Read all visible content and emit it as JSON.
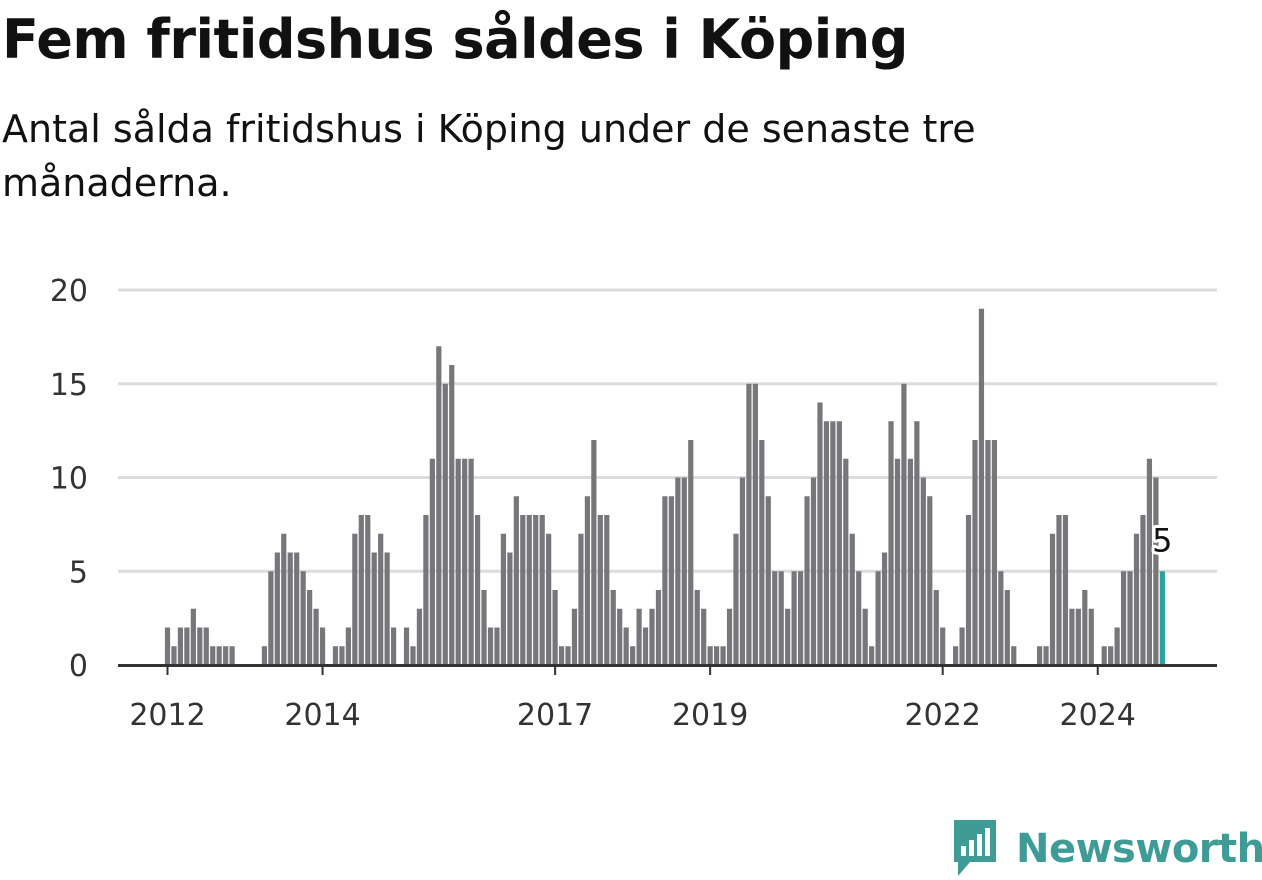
{
  "title": "Fem fritidshus såldes i Köping",
  "subtitle": "Antal sålda fritidshus i Köping under de senaste tre månaderna.",
  "brand": {
    "name": "Newsworthy",
    "icon": "newsworthy-logo-icon",
    "color": "#3f9b96"
  },
  "chart_data": {
    "type": "bar",
    "title": "Fem fritidshus såldes i Köping",
    "subtitle": "Antal sålda fritidshus i Köping under de senaste tre månaderna.",
    "xlabel": "",
    "ylabel": "",
    "ylim": [
      0,
      20
    ],
    "yticks": [
      0,
      5,
      10,
      15,
      20
    ],
    "xticks": [
      "2012",
      "2014",
      "2017",
      "2019",
      "2022",
      "2024"
    ],
    "grid": "horizontal",
    "legend": "none",
    "bar_color": "#77767b",
    "highlight_color": "#2aa39a",
    "last_label": "5",
    "start": "2012-01",
    "interval": "month",
    "values": [
      2,
      1,
      2,
      2,
      3,
      2,
      2,
      1,
      1,
      1,
      1,
      0,
      0,
      0,
      0,
      1,
      5,
      6,
      7,
      6,
      6,
      5,
      4,
      3,
      2,
      0,
      1,
      1,
      2,
      7,
      8,
      8,
      6,
      7,
      6,
      2,
      0,
      2,
      1,
      3,
      8,
      11,
      17,
      15,
      16,
      11,
      11,
      11,
      8,
      4,
      2,
      2,
      7,
      6,
      9,
      8,
      8,
      8,
      8,
      7,
      4,
      1,
      1,
      3,
      7,
      9,
      12,
      8,
      8,
      4,
      3,
      2,
      1,
      3,
      2,
      3,
      4,
      9,
      9,
      10,
      10,
      12,
      4,
      3,
      1,
      1,
      1,
      3,
      7,
      10,
      15,
      15,
      12,
      9,
      5,
      5,
      3,
      5,
      5,
      9,
      10,
      14,
      13,
      13,
      13,
      11,
      7,
      5,
      3,
      1,
      5,
      6,
      13,
      11,
      15,
      11,
      13,
      10,
      9,
      4,
      2,
      0,
      1,
      2,
      8,
      12,
      19,
      12,
      12,
      5,
      4,
      1,
      0,
      0,
      0,
      1,
      1,
      7,
      8,
      8,
      3,
      3,
      4,
      3,
      0,
      1,
      1,
      2,
      5,
      5,
      7,
      8,
      11,
      10,
      5
    ]
  }
}
